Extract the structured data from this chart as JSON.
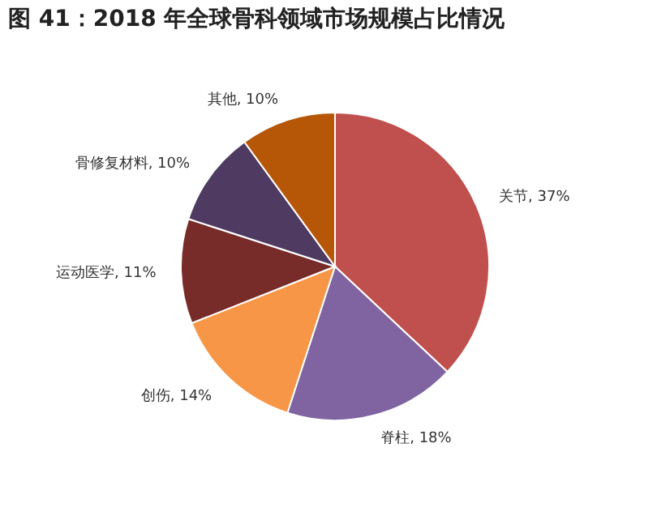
{
  "chart_data": {
    "type": "pie",
    "title": "图 41：2018 年全球骨科领域市场规模占比情况",
    "categories": [
      "关节",
      "脊柱",
      "创伤",
      "运动医学",
      "骨修复材料",
      "其他"
    ],
    "values": [
      37,
      18,
      14,
      11,
      10,
      10
    ],
    "colors": [
      "#c0504d",
      "#8064a2",
      "#f79646",
      "#772c2a",
      "#4f3b62",
      "#b65708"
    ],
    "value_labels": [
      ", 37%",
      ", 18%",
      ", 14%",
      ", 11%",
      ", 10%",
      ", 10%"
    ],
    "legend": false
  }
}
